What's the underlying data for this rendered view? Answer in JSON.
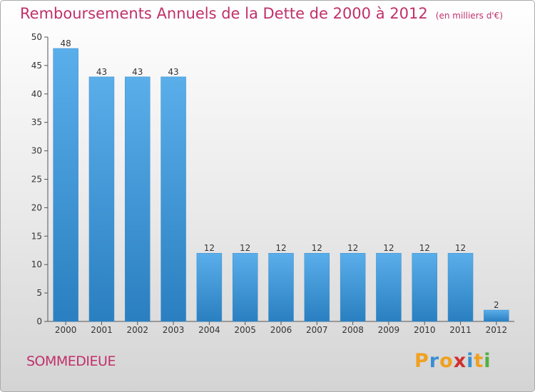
{
  "chart_data": {
    "type": "bar",
    "title": "Remboursements Annuels de la Dette de 2000 à 2012",
    "unit_note": "(en milliers d'€)",
    "categories": [
      "2000",
      "2001",
      "2002",
      "2003",
      "2004",
      "2005",
      "2006",
      "2007",
      "2008",
      "2009",
      "2010",
      "2011",
      "2012"
    ],
    "values": [
      48,
      43,
      43,
      43,
      12,
      12,
      12,
      12,
      12,
      12,
      12,
      12,
      2
    ],
    "ylim": [
      0,
      50
    ],
    "yticks": [
      0,
      5,
      10,
      15,
      20,
      25,
      30,
      35,
      40,
      45,
      50
    ],
    "grid": false,
    "bar_color_top": "#5aaeea",
    "bar_color_bottom": "#2a7fc0"
  },
  "footer": {
    "place_name": "SOMMEDIEUE",
    "brand": "Proxiti",
    "brand_letters": [
      "P",
      "r",
      "o",
      "x",
      "i",
      "t",
      "i"
    ],
    "brand_colors": [
      "#f0a020",
      "#3a8fd0",
      "#f0a020",
      "#d03030",
      "#3a8fd0",
      "#f0a020",
      "#50b040"
    ]
  }
}
